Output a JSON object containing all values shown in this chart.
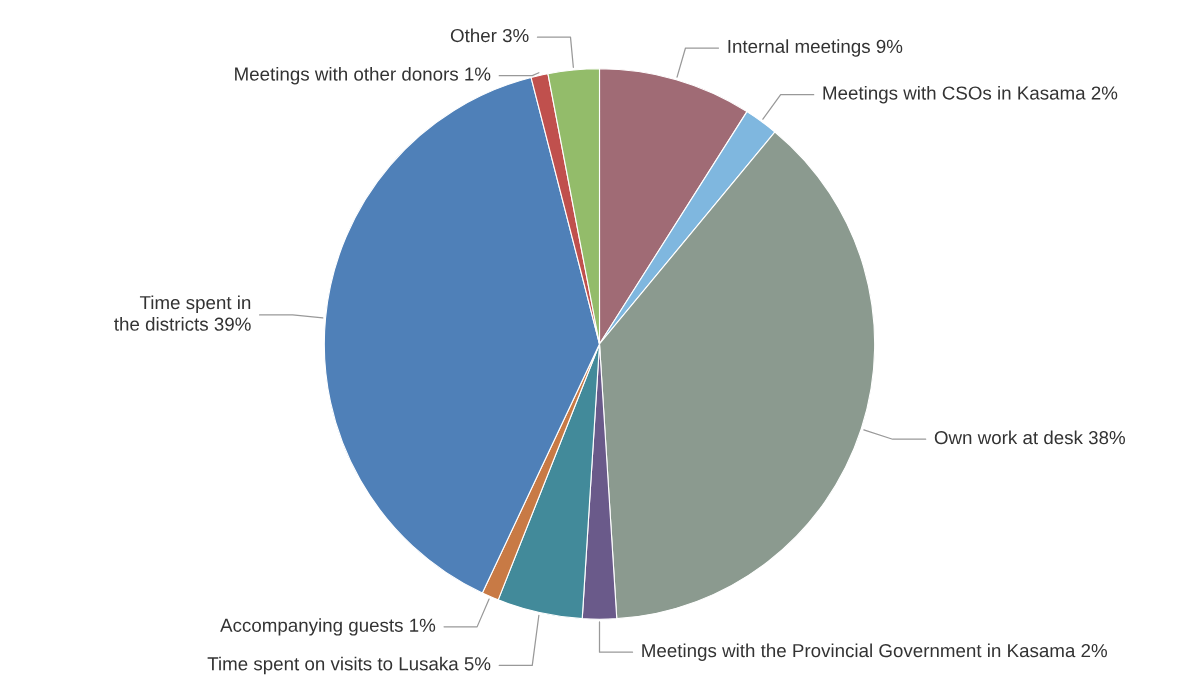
{
  "chart_data": {
    "type": "pie",
    "categories": [
      "Internal meetings",
      "Meetings with CSOs in Kasama",
      "Own work at desk",
      "Meetings with the Provincial Government in Kasama",
      "Time spent on visits to Lusaka",
      "Accompanying guests",
      "Time spent in\nthe districts",
      "Meetings with other donors",
      "Other"
    ],
    "values": [
      9,
      2,
      38,
      2,
      5,
      1,
      39,
      1,
      3
    ],
    "value_labels": [
      "9%",
      "2%",
      "38%",
      "2%",
      "5%",
      "1%",
      "39%",
      "1%",
      "3%"
    ],
    "colors": [
      "#a06b75",
      "#7fb7df",
      "#8b9a8f",
      "#6a5a8a",
      "#428a9a",
      "#c87a45",
      "#4f80b8",
      "#c0504d",
      "#93bc6a"
    ],
    "legend": false
  }
}
